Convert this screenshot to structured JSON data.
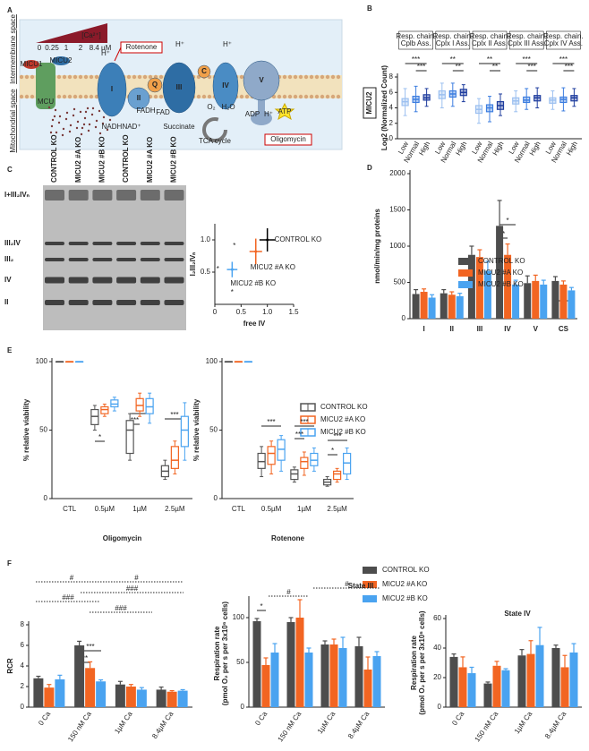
{
  "panels": [
    "A",
    "B",
    "C",
    "D",
    "E",
    "F"
  ],
  "diagram": {
    "sides": [
      "Intermembrane space",
      "Mitochondrial space"
    ],
    "gradient": "[Ca²⁺]",
    "gradient_ticks": [
      "0",
      "0.25",
      "1",
      "2",
      "8.4 µM"
    ],
    "channel": [
      "MCU",
      "MICU1",
      "MICU2"
    ],
    "complexes": [
      "I",
      "II",
      "Q",
      "III",
      "C",
      "IV",
      "V"
    ],
    "inhibitors": [
      "Rotenone",
      "Oligomycin"
    ],
    "molecules": [
      "H⁺",
      "NADH",
      "NAD⁺",
      "FADH",
      "FAD",
      "O₂",
      "H₂O",
      "ADP",
      "ATP",
      "Succinate",
      "TCA cycle"
    ]
  },
  "blot": {
    "lanes": [
      "CONTROL KO",
      "MICU2 #A KO",
      "MICU2 #B KO",
      "CONTROL KO",
      "MICU2 #A KO",
      "MICU2 #B KO"
    ],
    "bands": [
      "I+III₂IVₙ",
      "III₂IV",
      "III₂",
      "IV",
      "II"
    ]
  },
  "chart_data": [
    {
      "type": "box",
      "gene": "MICU2",
      "ylabel": "Log2 (Normalized Count)",
      "categories": [
        [
          "Resp. chain.",
          "Cplb Ass."
        ],
        [
          "Resp. chain.",
          "Cplx I Ass."
        ],
        [
          "Resp. chain.",
          "Cplx II Ass."
        ],
        [
          "Resp. chain.",
          "Cplx III Ass."
        ],
        [
          "Resp. chain.",
          "Cplx IV Ass."
        ]
      ],
      "ylim": [
        0,
        8
      ],
      "yticks": [
        0,
        2,
        4,
        6,
        8
      ],
      "series": [
        {
          "name": "Low",
          "color": "#9cc0f0",
          "median": [
            4.8,
            5.7,
            3.8,
            4.9,
            5.0
          ],
          "q1": [
            4.3,
            5.2,
            3.3,
            4.5,
            4.6
          ],
          "q3": [
            5.2,
            6.2,
            4.3,
            5.3,
            5.3
          ],
          "low": [
            3.0,
            4.0,
            2.0,
            3.5,
            3.8
          ],
          "high": [
            6.5,
            7.2,
            5.2,
            6.2,
            6.2
          ]
        },
        {
          "name": "Normal",
          "color": "#3d7ee0",
          "median": [
            5.1,
            5.8,
            4.0,
            5.0,
            5.1
          ],
          "q1": [
            4.7,
            5.4,
            3.5,
            4.7,
            4.7
          ],
          "q3": [
            5.5,
            6.2,
            4.4,
            5.4,
            5.4
          ],
          "low": [
            3.5,
            4.2,
            2.2,
            3.8,
            3.6
          ],
          "high": [
            6.8,
            7.2,
            5.5,
            6.5,
            6.6
          ]
        },
        {
          "name": "High",
          "color": "#1f3d9e",
          "median": [
            5.3,
            6.0,
            4.3,
            5.3,
            5.3
          ],
          "q1": [
            5.0,
            5.6,
            3.8,
            4.9,
            4.9
          ],
          "q3": [
            5.7,
            6.4,
            4.8,
            5.6,
            5.6
          ],
          "low": [
            4.2,
            4.8,
            3.0,
            4.0,
            4.2
          ],
          "high": [
            6.5,
            7.0,
            5.8,
            6.6,
            6.5
          ]
        }
      ],
      "annotations": [
        "***",
        "***",
        "**",
        "**",
        "**",
        "**",
        "***",
        "***",
        "***",
        "***"
      ]
    },
    {
      "type": "scatter",
      "xlabel": "free IV",
      "ylabel": "I₂III₂IVₙ",
      "xlim": [
        0,
        1.5
      ],
      "ylim": [
        0,
        1.25
      ],
      "xticks": [
        0,
        0.5,
        {
          "value": 1,
          "label": "1.0"
        },
        1.5
      ],
      "yticks": [
        0.5,
        {
          "value": 1,
          "label": "1.0"
        }
      ],
      "series": [
        {
          "name": "CONTROL KO",
          "color": "#000000",
          "x": [
            1.0
          ],
          "y": [
            1.0
          ],
          "xerr": [
            0.15
          ],
          "yerr": [
            0.18
          ]
        },
        {
          "name": "MICU2 #A KO",
          "color": "#f26522",
          "x": [
            0.78
          ],
          "y": [
            0.82
          ],
          "xerr": [
            0.12
          ],
          "yerr": [
            0.2
          ]
        },
        {
          "name": "MICU2 #B KO",
          "color": "#4aa3f0",
          "x": [
            0.33
          ],
          "y": [
            0.54
          ],
          "xerr": [
            0.1
          ],
          "yerr": [
            0.12
          ]
        }
      ],
      "annotations": [
        "*",
        "*",
        "*"
      ]
    },
    {
      "type": "bar",
      "ylabel": "nmol/min/mg proteins",
      "categories": [
        "I",
        "II",
        "III",
        "IV",
        "V",
        "CS"
      ],
      "ylim": [
        0,
        2000
      ],
      "yticks": [
        0,
        500,
        1000,
        1500,
        2000
      ],
      "series": [
        {
          "name": "CONTROL KO",
          "color": "#4d4d4d",
          "values": [
            340,
            350,
            880,
            1280,
            490,
            520
          ],
          "errors": [
            60,
            50,
            120,
            350,
            100,
            60
          ]
        },
        {
          "name": "MICU2 #A KO",
          "color": "#f26522",
          "values": [
            370,
            330,
            850,
            880,
            520,
            470
          ],
          "errors": [
            40,
            40,
            100,
            150,
            80,
            50
          ]
        },
        {
          "name": "MICU2 #B KO",
          "color": "#4aa3f0",
          "values": [
            290,
            310,
            660,
            470,
            470,
            390
          ],
          "errors": [
            40,
            40,
            130,
            60,
            60,
            40
          ]
        }
      ],
      "annotations": [
        "*",
        "*",
        "*"
      ]
    },
    {
      "type": "box",
      "xlabel": "Oligomycin",
      "ylabel": "% relative viability",
      "categories": [
        "CTL",
        "0.5µM",
        "1µM",
        "2.5µM"
      ],
      "ylim": [
        0,
        100
      ],
      "yticks": [
        0,
        50,
        100
      ],
      "series": [
        {
          "name": "CONTROL KO",
          "color": "#555555",
          "median": [
            100,
            60,
            50,
            20
          ],
          "q1": [
            100,
            54,
            33,
            16
          ],
          "q3": [
            100,
            65,
            57,
            24
          ],
          "low": [
            100,
            50,
            28,
            14
          ],
          "high": [
            100,
            68,
            62,
            28
          ]
        },
        {
          "name": "MICU2 #A KO",
          "color": "#f26522",
          "median": [
            100,
            65,
            68,
            28
          ],
          "q1": [
            100,
            62,
            64,
            22
          ],
          "q3": [
            100,
            67,
            73,
            38
          ],
          "low": [
            100,
            60,
            60,
            18
          ],
          "high": [
            100,
            69,
            77,
            42
          ]
        },
        {
          "name": "MICU2 #B KO",
          "color": "#4aa3f0",
          "median": [
            100,
            69,
            67,
            50
          ],
          "q1": [
            100,
            67,
            62,
            38
          ],
          "q3": [
            100,
            72,
            73,
            60
          ],
          "low": [
            100,
            64,
            55,
            28
          ],
          "high": [
            100,
            74,
            77,
            70
          ]
        }
      ],
      "annotations": [
        "*",
        "***",
        "***",
        "***"
      ]
    },
    {
      "type": "box",
      "xlabel": "Rotenone",
      "ylabel": "% relative viability",
      "categories": [
        "CTL",
        "0.5µM",
        "1µM",
        "2.5µM"
      ],
      "ylim": [
        0,
        100
      ],
      "yticks": [
        0,
        50,
        100
      ],
      "series": [
        {
          "color": "#555555",
          "median": [
            100,
            27,
            18,
            12
          ],
          "q1": [
            100,
            22,
            14,
            10
          ],
          "q3": [
            100,
            33,
            21,
            14
          ],
          "low": [
            100,
            16,
            12,
            9
          ],
          "high": [
            100,
            38,
            23,
            16
          ]
        },
        {
          "color": "#f26522",
          "median": [
            100,
            33,
            27,
            18
          ],
          "q1": [
            100,
            25,
            22,
            14
          ],
          "q3": [
            100,
            38,
            30,
            20
          ],
          "low": [
            100,
            18,
            17,
            12
          ],
          "high": [
            100,
            42,
            34,
            22
          ]
        },
        {
          "color": "#4aa3f0",
          "median": [
            100,
            36,
            28,
            26
          ],
          "q1": [
            100,
            28,
            24,
            18
          ],
          "q3": [
            100,
            43,
            33,
            33
          ],
          "low": [
            100,
            20,
            20,
            14
          ],
          "high": [
            100,
            46,
            37,
            37
          ]
        }
      ],
      "annotations": [
        "***",
        "***",
        "***",
        "*",
        "***"
      ]
    },
    {
      "type": "bar",
      "ylabel": "RCR",
      "categories": [
        "0 Ca",
        "150 nM Ca",
        "1µM Ca",
        "8.4µM Ca"
      ],
      "ylim": [
        0,
        8
      ],
      "yticks": [
        0,
        2,
        4,
        6,
        8
      ],
      "series": [
        {
          "name": "CONTROL KO",
          "color": "#4d4d4d",
          "values": [
            2.8,
            6.0,
            2.2,
            1.7
          ],
          "errors": [
            0.2,
            0.4,
            0.3,
            0.25
          ]
        },
        {
          "name": "MICU2 #A KO",
          "color": "#f26522",
          "values": [
            1.9,
            3.8,
            2.0,
            1.5
          ],
          "errors": [
            0.3,
            0.6,
            0.2,
            0.1
          ]
        },
        {
          "name": "MICU2 #B KO",
          "color": "#4aa3f0",
          "values": [
            2.7,
            2.5,
            1.7,
            1.6
          ],
          "errors": [
            0.4,
            0.15,
            0.2,
            0.1
          ]
        }
      ],
      "annotations": [
        "#",
        "#",
        "###",
        "###",
        "###",
        "**",
        "***"
      ]
    },
    {
      "type": "bar",
      "title": "State III",
      "ylabel": [
        "Respiration rate",
        "(pmol O₂ per s per 3x10⁶ cells)"
      ],
      "categories": [
        "0 Ca",
        "150 nM Ca",
        "1µM Ca",
        "8.4µM Ca"
      ],
      "ylim": [
        0,
        120
      ],
      "yticks": [
        0,
        50,
        100
      ],
      "series": [
        {
          "color": "#4d4d4d",
          "values": [
            96,
            95,
            70,
            68
          ],
          "errors": [
            3,
            5,
            4,
            10
          ]
        },
        {
          "color": "#f26522",
          "values": [
            47,
            100,
            70,
            42
          ],
          "errors": [
            8,
            20,
            6,
            14
          ]
        },
        {
          "color": "#4aa3f0",
          "values": [
            61,
            61,
            66,
            57
          ],
          "errors": [
            10,
            5,
            12,
            5
          ]
        }
      ],
      "annotations": [
        "*",
        "#",
        "#"
      ]
    },
    {
      "type": "bar",
      "title": "State IV",
      "ylabel": [
        "Respiration rate",
        "(pmol O₂ per s per 3x10⁶ cells)"
      ],
      "categories": [
        "0 Ca",
        "150 nM Ca",
        "1µM Ca",
        "8.4µM Ca"
      ],
      "ylim": [
        0,
        60
      ],
      "yticks": [
        0,
        20,
        40,
        60
      ],
      "series": [
        {
          "color": "#4d4d4d",
          "values": [
            34,
            16,
            35,
            40
          ],
          "errors": [
            2,
            1,
            4,
            2
          ]
        },
        {
          "color": "#f26522",
          "values": [
            27,
            28,
            36,
            27
          ],
          "errors": [
            7,
            3,
            9,
            8
          ]
        },
        {
          "color": "#4aa3f0",
          "values": [
            23,
            25,
            42,
            37
          ],
          "errors": [
            4,
            1,
            12,
            6
          ]
        }
      ]
    }
  ]
}
